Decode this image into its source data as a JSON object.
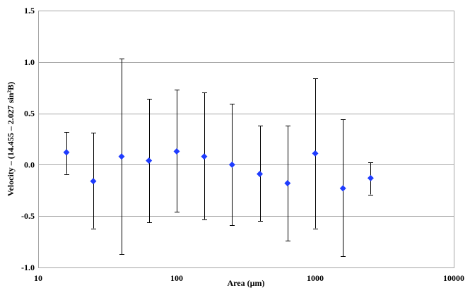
{
  "chart_data": {
    "type": "scatter",
    "title": "",
    "xlabel": "Area (µm)",
    "ylabel": "Velocity – (14.455 – 2.027 sin²B)",
    "x_scale": "log",
    "xlim": [
      10,
      10000
    ],
    "ylim": [
      -1.0,
      1.5
    ],
    "x_ticks": [
      10,
      100,
      1000,
      10000
    ],
    "x_tick_labels": [
      "10",
      "100",
      "1000",
      "10000"
    ],
    "y_ticks": [
      -1.0,
      -0.5,
      0.0,
      0.5,
      1.0,
      1.5
    ],
    "y_tick_labels": [
      "-1.0",
      "-0.5",
      "0.0",
      "0.5",
      "1.0",
      "1.5"
    ],
    "grid": "horizontal",
    "legend": "none",
    "marker": "diamond",
    "marker_color": "#1f3cff",
    "points": [
      {
        "x": 16,
        "y": 0.12,
        "y_lower": -0.09,
        "y_upper": 0.32
      },
      {
        "x": 25,
        "y": -0.16,
        "y_lower": -0.62,
        "y_upper": 0.31
      },
      {
        "x": 40,
        "y": 0.08,
        "y_lower": -0.87,
        "y_upper": 1.03
      },
      {
        "x": 63,
        "y": 0.04,
        "y_lower": -0.56,
        "y_upper": 0.64
      },
      {
        "x": 100,
        "y": 0.13,
        "y_lower": -0.46,
        "y_upper": 0.73
      },
      {
        "x": 158,
        "y": 0.08,
        "y_lower": -0.53,
        "y_upper": 0.7
      },
      {
        "x": 251,
        "y": 0.0,
        "y_lower": -0.59,
        "y_upper": 0.59
      },
      {
        "x": 398,
        "y": -0.09,
        "y_lower": -0.55,
        "y_upper": 0.38
      },
      {
        "x": 631,
        "y": -0.18,
        "y_lower": -0.74,
        "y_upper": 0.38
      },
      {
        "x": 1000,
        "y": 0.11,
        "y_lower": -0.62,
        "y_upper": 0.84
      },
      {
        "x": 1585,
        "y": -0.23,
        "y_lower": -0.89,
        "y_upper": 0.44
      },
      {
        "x": 2512,
        "y": -0.13,
        "y_lower": -0.29,
        "y_upper": 0.02
      }
    ]
  }
}
